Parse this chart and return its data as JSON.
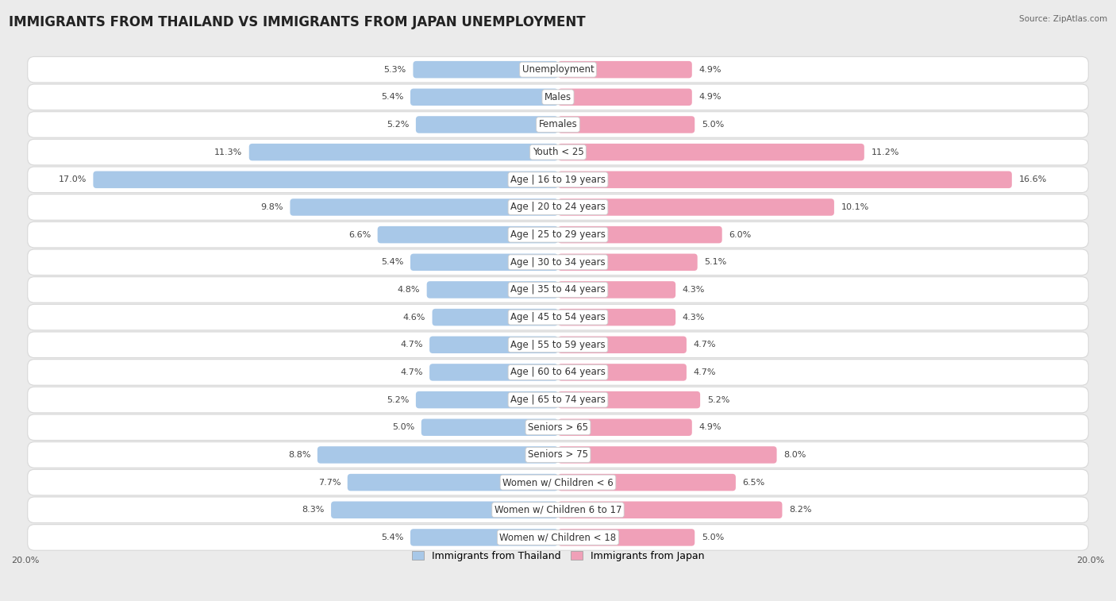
{
  "title": "IMMIGRANTS FROM THAILAND VS IMMIGRANTS FROM JAPAN UNEMPLOYMENT",
  "source": "Source: ZipAtlas.com",
  "categories": [
    "Unemployment",
    "Males",
    "Females",
    "Youth < 25",
    "Age | 16 to 19 years",
    "Age | 20 to 24 years",
    "Age | 25 to 29 years",
    "Age | 30 to 34 years",
    "Age | 35 to 44 years",
    "Age | 45 to 54 years",
    "Age | 55 to 59 years",
    "Age | 60 to 64 years",
    "Age | 65 to 74 years",
    "Seniors > 65",
    "Seniors > 75",
    "Women w/ Children < 6",
    "Women w/ Children 6 to 17",
    "Women w/ Children < 18"
  ],
  "thailand_values": [
    5.3,
    5.4,
    5.2,
    11.3,
    17.0,
    9.8,
    6.6,
    5.4,
    4.8,
    4.6,
    4.7,
    4.7,
    5.2,
    5.0,
    8.8,
    7.7,
    8.3,
    5.4
  ],
  "japan_values": [
    4.9,
    4.9,
    5.0,
    11.2,
    16.6,
    10.1,
    6.0,
    5.1,
    4.3,
    4.3,
    4.7,
    4.7,
    5.2,
    4.9,
    8.0,
    6.5,
    8.2,
    5.0
  ],
  "thailand_color": "#a8c8e8",
  "japan_color": "#f0a0b8",
  "thailand_label": "Immigrants from Thailand",
  "japan_label": "Immigrants from Japan",
  "axis_max": 20.0,
  "background_color": "#ebebeb",
  "row_bg_color": "#ffffff",
  "title_fontsize": 12,
  "label_fontsize": 8.5,
  "value_fontsize": 8,
  "bar_height": 0.62
}
